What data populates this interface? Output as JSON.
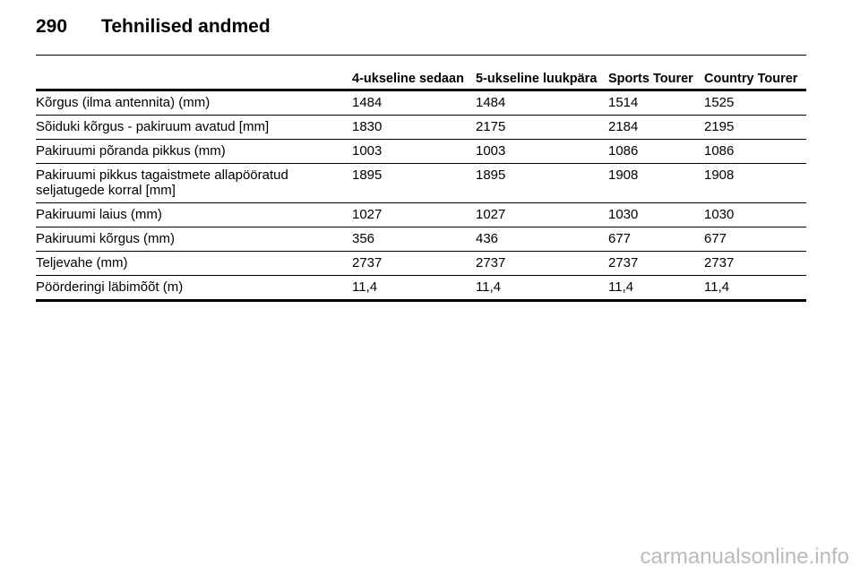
{
  "header": {
    "page": "290",
    "title": "Tehnilised andmed"
  },
  "table": {
    "columns": [
      "4-ukseline sedaan",
      "5-ukseline luukpära",
      "Sports Tourer",
      "Country Tourer"
    ],
    "rows": [
      [
        "Kõrgus (ilma antennita) (mm)",
        "1484",
        "1484",
        "1514",
        "1525"
      ],
      [
        "Sõiduki kõrgus - pakiruum avatud [mm]",
        "1830",
        "2175",
        "2184",
        "2195"
      ],
      [
        "Pakiruumi põranda pikkus (mm)",
        "1003",
        "1003",
        "1086",
        "1086"
      ],
      [
        "Pakiruumi pikkus tagaistmete allapööratud seljatugede korral [mm]",
        "1895",
        "1895",
        "1908",
        "1908"
      ],
      [
        "Pakiruumi laius (mm)",
        "1027",
        "1027",
        "1030",
        "1030"
      ],
      [
        "Pakiruumi kõrgus (mm)",
        "356",
        "436",
        "677",
        "677"
      ],
      [
        "Teljevahe (mm)",
        "2737",
        "2737",
        "2737",
        "2737"
      ],
      [
        "Pöörderingi läbimõõt (m)",
        "11,4",
        "11,4",
        "11,4",
        "11,4"
      ]
    ]
  },
  "footer": {
    "watermark": "carmanualsonline.info"
  }
}
